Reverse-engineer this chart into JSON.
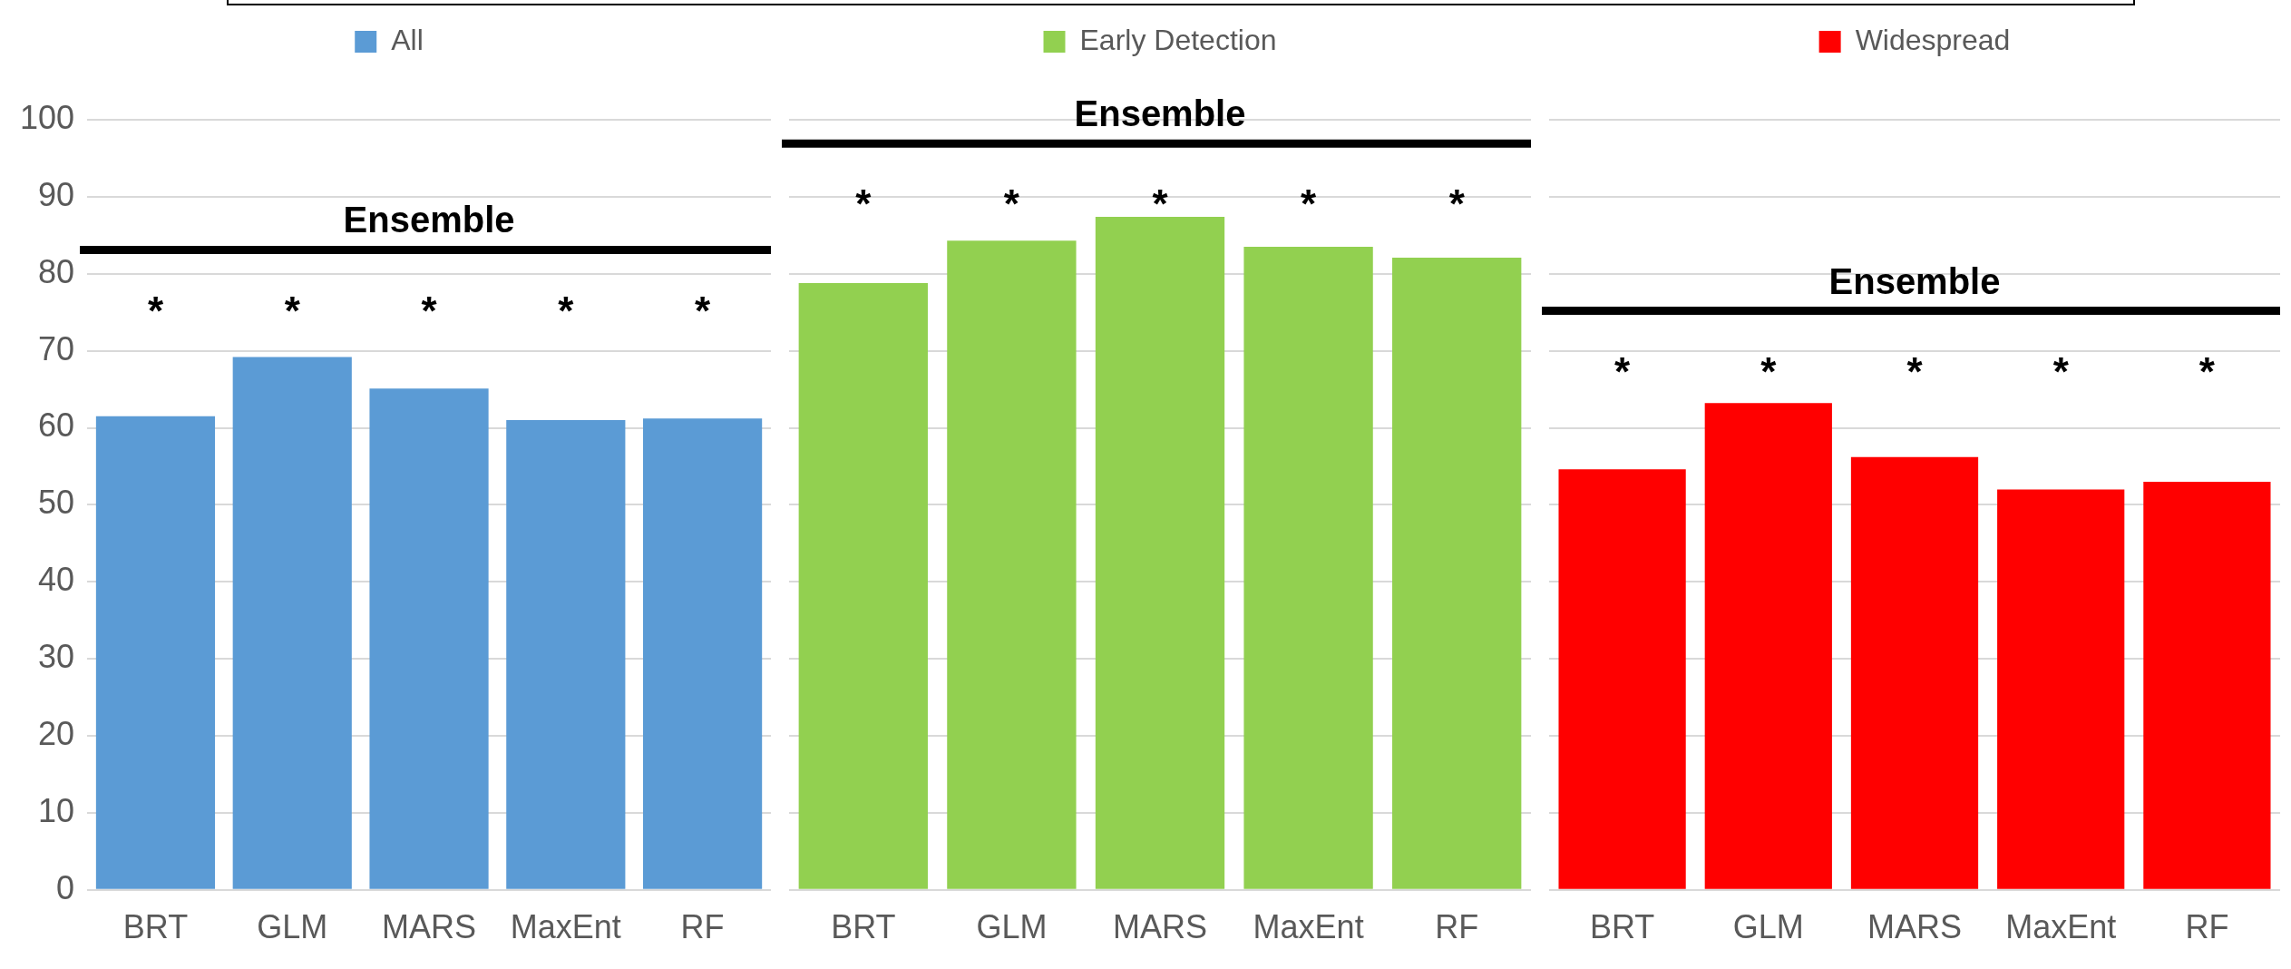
{
  "chart_data": [
    {
      "type": "bar",
      "categories": [
        "BRT",
        "GLM",
        "MARS",
        "MaxEnt",
        "RF"
      ],
      "series": [
        {
          "name": "All",
          "color": "#5b9bd5",
          "values": [
            61.5,
            69.2,
            65.1,
            61.0,
            61.2
          ]
        }
      ],
      "ylim": [
        0,
        100
      ],
      "yticks": [
        0,
        10,
        20,
        30,
        40,
        50,
        60,
        70,
        80,
        90,
        100
      ],
      "grid": "y",
      "legend": "top",
      "ref_lines": [
        {
          "axis": "y",
          "value": 83.1,
          "label": "Ensemble",
          "color": "#000000"
        }
      ],
      "annotations": [
        "*",
        "*",
        "*",
        "*",
        "*"
      ]
    },
    {
      "type": "bar",
      "categories": [
        "BRT",
        "GLM",
        "MARS",
        "MaxEnt",
        "RF"
      ],
      "series": [
        {
          "name": "Early Detection",
          "color": "#92d050",
          "values": [
            78.8,
            84.3,
            87.4,
            83.5,
            82.1
          ]
        }
      ],
      "ylim": [
        0,
        100
      ],
      "yticks": [
        0,
        10,
        20,
        30,
        40,
        50,
        60,
        70,
        80,
        90,
        100
      ],
      "grid": "y",
      "legend": "top",
      "tick_labels": "x",
      "ref_lines": [
        {
          "axis": "y",
          "value": 96.9,
          "label": "Ensemble",
          "color": "#000000"
        }
      ],
      "annotations": [
        "*",
        "*",
        "*",
        "*",
        "*"
      ]
    },
    {
      "type": "bar",
      "categories": [
        "BRT",
        "GLM",
        "MARS",
        "MaxEnt",
        "RF"
      ],
      "series": [
        {
          "name": "Widespread",
          "color": "#ff0000",
          "values": [
            54.6,
            63.2,
            56.2,
            52.0,
            53.0
          ]
        }
      ],
      "ylim": [
        0,
        100
      ],
      "yticks": [
        0,
        10,
        20,
        30,
        40,
        50,
        60,
        70,
        80,
        90,
        100
      ],
      "grid": "y",
      "legend": "top",
      "tick_labels": "x",
      "ref_lines": [
        {
          "axis": "y",
          "value": 75.2,
          "label": "Ensemble",
          "color": "#000000"
        }
      ],
      "annotations": [
        "*",
        "*",
        "*",
        "*",
        "*"
      ]
    }
  ]
}
